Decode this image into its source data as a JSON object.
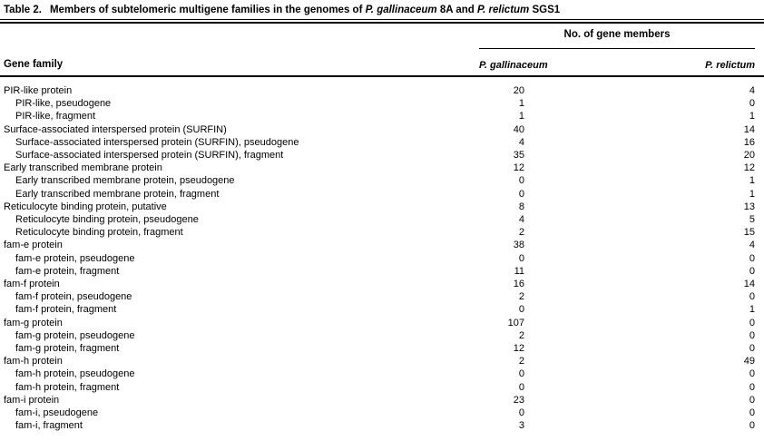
{
  "caption": {
    "label": "Table 2.",
    "text_1": "Members of subtelomeric multigene families in the genomes of ",
    "species_1": "P. gallinaceum",
    "text_2": " 8A and ",
    "species_2": "P. relictum",
    "text_3": " SGS1"
  },
  "header": {
    "group": "No. of gene members",
    "col_family": "Gene family",
    "col_gallinaceum": "P. gallinaceum",
    "col_relictum": "P. relictum"
  },
  "table": {
    "rows": [
      {
        "family": "PIR-like protein",
        "indent": false,
        "gallinaceum": "20",
        "relictum": "4"
      },
      {
        "family": "PIR-like, pseudogene",
        "indent": true,
        "gallinaceum": "1",
        "relictum": "0"
      },
      {
        "family": "PIR-like, fragment",
        "indent": true,
        "gallinaceum": "1",
        "relictum": "1"
      },
      {
        "family": "Surface-associated interspersed protein (SURFIN)",
        "indent": false,
        "gallinaceum": "40",
        "relictum": "14"
      },
      {
        "family": "Surface-associated interspersed protein (SURFIN), pseudogene",
        "indent": true,
        "gallinaceum": "4",
        "relictum": "16"
      },
      {
        "family": "Surface-associated interspersed protein (SURFIN), fragment",
        "indent": true,
        "gallinaceum": "35",
        "relictum": "20"
      },
      {
        "family": "Early transcribed membrane protein",
        "indent": false,
        "gallinaceum": "12",
        "relictum": "12"
      },
      {
        "family": "Early transcribed membrane protein, pseudogene",
        "indent": true,
        "gallinaceum": "0",
        "relictum": "1"
      },
      {
        "family": "Early transcribed membrane protein, fragment",
        "indent": true,
        "gallinaceum": "0",
        "relictum": "1"
      },
      {
        "family": "Reticulocyte binding protein, putative",
        "indent": false,
        "gallinaceum": "8",
        "relictum": "13"
      },
      {
        "family": "Reticulocyte binding protein, pseudogene",
        "indent": true,
        "gallinaceum": "4",
        "relictum": "5"
      },
      {
        "family": "Reticulocyte binding protein, fragment",
        "indent": true,
        "gallinaceum": "2",
        "relictum": "15"
      },
      {
        "family": "fam-e protein",
        "indent": false,
        "gallinaceum": "38",
        "relictum": "4"
      },
      {
        "family": "fam-e protein, pseudogene",
        "indent": true,
        "gallinaceum": "0",
        "relictum": "0"
      },
      {
        "family": "fam-e protein, fragment",
        "indent": true,
        "gallinaceum": "11",
        "relictum": "0"
      },
      {
        "family": "fam-f protein",
        "indent": false,
        "gallinaceum": "16",
        "relictum": "14"
      },
      {
        "family": "fam-f protein, pseudogene",
        "indent": true,
        "gallinaceum": "2",
        "relictum": "0"
      },
      {
        "family": "fam-f protein, fragment",
        "indent": true,
        "gallinaceum": "0",
        "relictum": "1"
      },
      {
        "family": "fam-g protein",
        "indent": false,
        "gallinaceum": "107",
        "relictum": "0"
      },
      {
        "family": "fam-g protein, pseudogene",
        "indent": true,
        "gallinaceum": "2",
        "relictum": "0"
      },
      {
        "family": "fam-g protein, fragment",
        "indent": true,
        "gallinaceum": "12",
        "relictum": "0"
      },
      {
        "family": "fam-h protein",
        "indent": false,
        "gallinaceum": "2",
        "relictum": "49"
      },
      {
        "family": "fam-h protein, pseudogene",
        "indent": true,
        "gallinaceum": "0",
        "relictum": "0"
      },
      {
        "family": "fam-h protein, fragment",
        "indent": true,
        "gallinaceum": "0",
        "relictum": "0"
      },
      {
        "family": "fam-i protein",
        "indent": false,
        "gallinaceum": "23",
        "relictum": "0"
      },
      {
        "family": "fam-i, pseudogene",
        "indent": true,
        "gallinaceum": "0",
        "relictum": "0"
      },
      {
        "family": "fam-i, fragment",
        "indent": true,
        "gallinaceum": "3",
        "relictum": "0"
      }
    ]
  },
  "chart_data": {
    "type": "table",
    "title": "Table 2. Members of subtelomeric multigene families in the genomes of P. gallinaceum 8A and P. relictum SGS1",
    "column_group": "No. of gene members",
    "columns": [
      "Gene family",
      "P. gallinaceum",
      "P. relictum"
    ],
    "series": [
      {
        "name": "P. gallinaceum",
        "values": [
          20,
          1,
          1,
          40,
          4,
          35,
          12,
          0,
          0,
          8,
          4,
          2,
          38,
          0,
          11,
          16,
          2,
          0,
          107,
          2,
          12,
          2,
          0,
          0,
          23,
          0,
          3
        ]
      },
      {
        "name": "P. relictum",
        "values": [
          4,
          0,
          1,
          14,
          16,
          20,
          12,
          1,
          1,
          13,
          5,
          15,
          4,
          0,
          0,
          14,
          0,
          1,
          0,
          0,
          0,
          49,
          0,
          0,
          0,
          0,
          0
        ]
      }
    ],
    "categories": [
      "PIR-like protein",
      "PIR-like, pseudogene",
      "PIR-like, fragment",
      "Surface-associated interspersed protein (SURFIN)",
      "Surface-associated interspersed protein (SURFIN), pseudogene",
      "Surface-associated interspersed protein (SURFIN), fragment",
      "Early transcribed membrane protein",
      "Early transcribed membrane protein, pseudogene",
      "Early transcribed membrane protein, fragment",
      "Reticulocyte binding protein, putative",
      "Reticulocyte binding protein, pseudogene",
      "Reticulocyte binding protein, fragment",
      "fam-e protein",
      "fam-e protein, pseudogene",
      "fam-e protein, fragment",
      "fam-f protein",
      "fam-f protein, pseudogene",
      "fam-f protein, fragment",
      "fam-g protein",
      "fam-g protein, pseudogene",
      "fam-g protein, fragment",
      "fam-h protein",
      "fam-h protein, pseudogene",
      "fam-h protein, fragment",
      "fam-i protein",
      "fam-i, pseudogene",
      "fam-i, fragment"
    ]
  },
  "colors": {
    "text": "#000000",
    "background": "#ffffff",
    "rule": "#000000"
  }
}
